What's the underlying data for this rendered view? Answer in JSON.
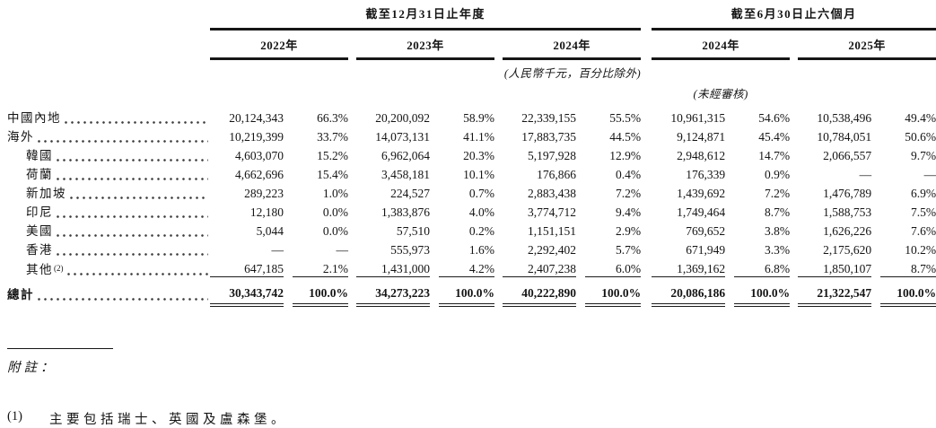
{
  "table": {
    "groups": [
      {
        "title": "截至12月31日止年度",
        "years": [
          "2022年",
          "2023年",
          "2024年"
        ]
      },
      {
        "title": "截至6月30日止六個月",
        "years": [
          "2024年",
          "2025年"
        ]
      }
    ],
    "unit_note": "(人民幣千元，百分比除外)",
    "unaudited_note": "(未經審核)",
    "rows": [
      {
        "label": "中國內地",
        "sup": "",
        "indent": false,
        "values": [
          "20,124,343",
          "66.3%",
          "20,200,092",
          "58.9%",
          "22,339,155",
          "55.5%",
          "10,961,315",
          "54.6%",
          "10,538,496",
          "49.4%"
        ]
      },
      {
        "label": "海外",
        "sup": "",
        "indent": false,
        "values": [
          "10,219,399",
          "33.7%",
          "14,073,131",
          "41.1%",
          "17,883,735",
          "44.5%",
          "9,124,871",
          "45.4%",
          "10,784,051",
          "50.6%"
        ]
      },
      {
        "label": "韓國",
        "sup": "",
        "indent": true,
        "values": [
          "4,603,070",
          "15.2%",
          "6,962,064",
          "20.3%",
          "5,197,928",
          "12.9%",
          "2,948,612",
          "14.7%",
          "2,066,557",
          "9.7%"
        ]
      },
      {
        "label": "荷蘭",
        "sup": "",
        "indent": true,
        "values": [
          "4,662,696",
          "15.4%",
          "3,458,181",
          "10.1%",
          "176,866",
          "0.4%",
          "176,339",
          "0.9%",
          "—",
          "—"
        ]
      },
      {
        "label": "新加坡",
        "sup": "",
        "indent": true,
        "values": [
          "289,223",
          "1.0%",
          "224,527",
          "0.7%",
          "2,883,438",
          "7.2%",
          "1,439,692",
          "7.2%",
          "1,476,789",
          "6.9%"
        ]
      },
      {
        "label": "印尼",
        "sup": "",
        "indent": true,
        "values": [
          "12,180",
          "0.0%",
          "1,383,876",
          "4.0%",
          "3,774,712",
          "9.4%",
          "1,749,464",
          "8.7%",
          "1,588,753",
          "7.5%"
        ]
      },
      {
        "label": "美國",
        "sup": "",
        "indent": true,
        "values": [
          "5,044",
          "0.0%",
          "57,510",
          "0.2%",
          "1,151,151",
          "2.9%",
          "769,652",
          "3.8%",
          "1,626,226",
          "7.6%"
        ]
      },
      {
        "label": "香港",
        "sup": "",
        "indent": true,
        "values": [
          "—",
          "—",
          "555,973",
          "1.6%",
          "2,292,402",
          "5.7%",
          "671,949",
          "3.3%",
          "2,175,620",
          "10.2%"
        ]
      },
      {
        "label": "其他",
        "sup": "(2)",
        "indent": true,
        "values": [
          "647,185",
          "2.1%",
          "1,431,000",
          "4.2%",
          "2,407,238",
          "6.0%",
          "1,369,162",
          "6.8%",
          "1,850,107",
          "8.7%"
        ]
      }
    ],
    "total": {
      "label": "總計",
      "values": [
        "30,343,742",
        "100.0%",
        "34,273,223",
        "100.0%",
        "40,222,890",
        "100.0%",
        "20,086,186",
        "100.0%",
        "21,322,547",
        "100.0%"
      ]
    }
  },
  "footnotes": {
    "heading": "附註：",
    "items": [
      {
        "marker": "(1)",
        "text": "主要包括瑞士、英國及盧森堡。"
      }
    ]
  }
}
